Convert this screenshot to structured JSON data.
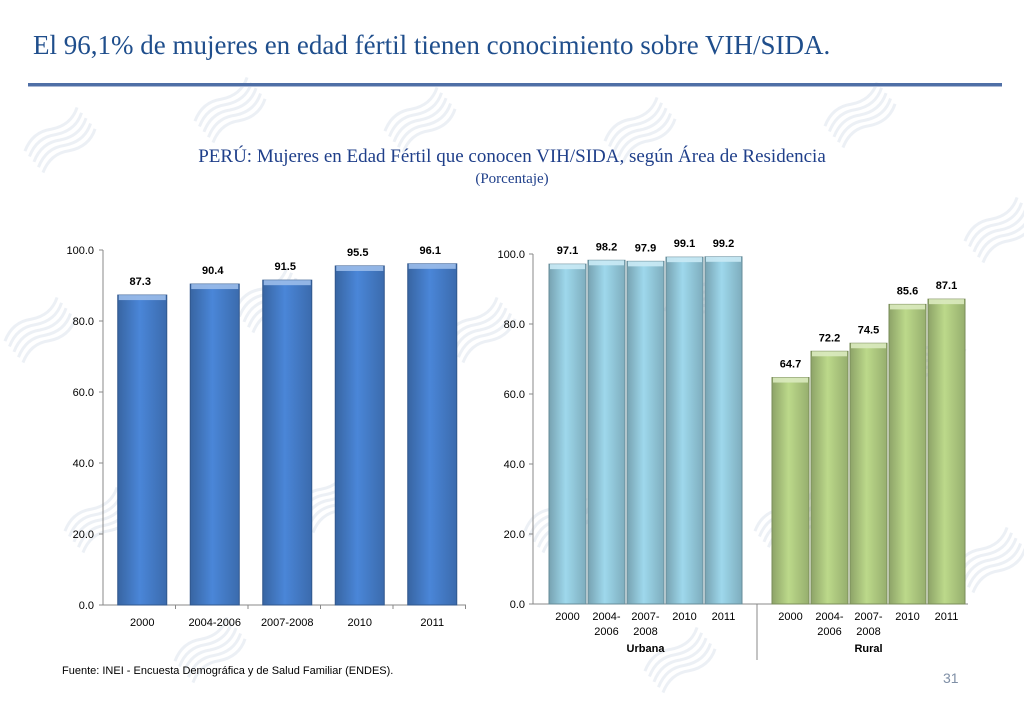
{
  "slide": {
    "title": "El 96,1% de mujeres en edad fértil tienen conocimiento sobre VIH/SIDA.",
    "source": "Fuente: INEI - Encuesta Demográfica y de Salud Familiar (ENDES).",
    "page_number": "31"
  },
  "colors": {
    "title": "#1f4e8c",
    "national_bar": "#4a86d8",
    "urban_bar": "#9ed8ec",
    "rural_bar": "#bcd98a"
  },
  "chart_data": [
    {
      "type": "bar",
      "title": "PERÚ: Mujeres en Edad Fértil que conocen VIH/SIDA, según Área de Residencia",
      "subtitle": "(Porcentaje)",
      "categories": [
        "2000",
        "2004-2006",
        "2007-2008",
        "2010",
        "2011"
      ],
      "values": [
        87.3,
        90.4,
        91.5,
        95.5,
        96.1
      ],
      "value_labels": [
        "87.3",
        "90.4",
        "91.5",
        "95.5",
        "96.1"
      ],
      "ylim": [
        0,
        100
      ],
      "yticks": [
        "0.0",
        "20.0",
        "40.0",
        "60.0",
        "80.0",
        "100.0"
      ],
      "grid": false
    },
    {
      "type": "bar",
      "ylim": [
        0,
        100
      ],
      "yticks": [
        "0.0",
        "20.0",
        "40.0",
        "60.0",
        "80.0",
        "100.0"
      ],
      "grid": false,
      "groups": [
        {
          "name": "Urbana",
          "categories": [
            [
              "2000"
            ],
            [
              "2004-",
              "2006"
            ],
            [
              "2007-",
              "2008"
            ],
            [
              "2010"
            ],
            [
              "2011"
            ]
          ],
          "values": [
            97.1,
            98.2,
            97.9,
            99.1,
            99.2
          ],
          "value_labels": [
            "97.1",
            "98.2",
            "97.9",
            "99.1",
            "99.2"
          ]
        },
        {
          "name": "Rural",
          "categories": [
            [
              "2000"
            ],
            [
              "2004-",
              "2006"
            ],
            [
              "2007-",
              "2008"
            ],
            [
              "2010"
            ],
            [
              "2011"
            ]
          ],
          "values": [
            64.7,
            72.2,
            74.5,
            85.6,
            87.1
          ],
          "value_labels": [
            "64.7",
            "72.2",
            "74.5",
            "85.6",
            "87.1"
          ]
        }
      ]
    }
  ]
}
